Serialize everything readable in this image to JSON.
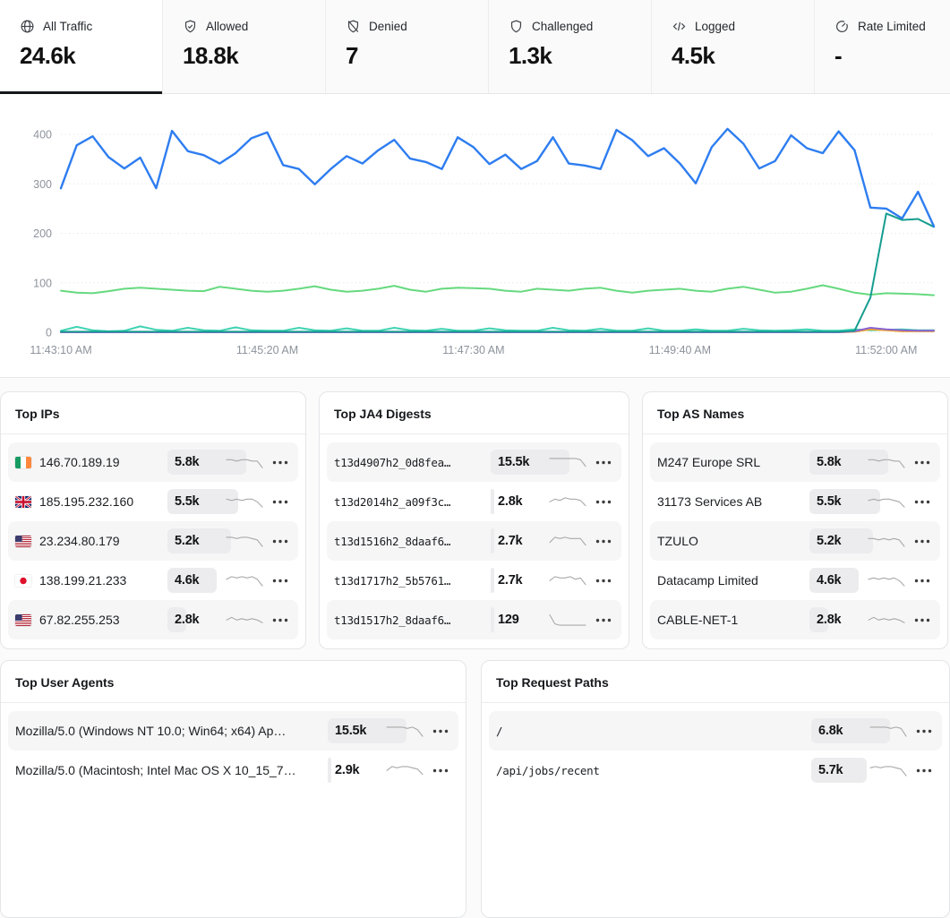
{
  "colors": {
    "active_underline": "#15171a",
    "card_border": "#e4e5e7",
    "bar_bg": "#ececee",
    "row_alt_bg": "#f6f6f7",
    "axis_text": "#8d939c",
    "grid": "#e9e9e9",
    "sparkline": "#a9a9a9"
  },
  "tabs": [
    {
      "label": "All Traffic",
      "value": "24.6k",
      "icon": "globe-icon",
      "active": true
    },
    {
      "label": "Allowed",
      "value": "18.8k",
      "icon": "shield-check-icon",
      "active": false
    },
    {
      "label": "Denied",
      "value": "7",
      "icon": "shield-off-icon",
      "active": false
    },
    {
      "label": "Challenged",
      "value": "1.3k",
      "icon": "shield-icon",
      "active": false
    },
    {
      "label": "Logged",
      "value": "4.5k",
      "icon": "code-icon",
      "active": false
    },
    {
      "label": "Rate Limited",
      "value": "-",
      "icon": "gauge-icon",
      "active": false
    }
  ],
  "chart_data": {
    "type": "line",
    "title": "",
    "xlabel": "",
    "ylabel": "",
    "ylim": [
      0,
      400
    ],
    "y_ticks": [
      0,
      100,
      200,
      300,
      400
    ],
    "grid": true,
    "legend": "none",
    "x_tick_labels": [
      "11:43:10 AM",
      "11:45:20 AM",
      "11:47:30 AM",
      "11:49:40 AM",
      "11:52:00 AM"
    ],
    "x_tick_indices": [
      0,
      13,
      26,
      39,
      52
    ],
    "series": [
      {
        "name": "green",
        "color": "#66d97f",
        "width": 2,
        "values": [
          84,
          80,
          79,
          83,
          88,
          90,
          88,
          86,
          84,
          83,
          92,
          88,
          84,
          82,
          84,
          88,
          93,
          86,
          82,
          84,
          88,
          94,
          86,
          82,
          88,
          90,
          89,
          88,
          84,
          82,
          88,
          86,
          84,
          88,
          90,
          84,
          80,
          84,
          86,
          88,
          84,
          82,
          88,
          92,
          86,
          80,
          82,
          88,
          95,
          88,
          80,
          76,
          79,
          78,
          77,
          75
        ]
      },
      {
        "name": "aqua",
        "color": "#3fd3b3",
        "width": 2,
        "values": [
          3,
          11,
          4,
          2,
          3,
          12,
          5,
          3,
          9,
          4,
          3,
          10,
          4,
          3,
          3,
          9,
          4,
          3,
          8,
          3,
          3,
          9,
          4,
          3,
          7,
          3,
          3,
          8,
          4,
          3,
          3,
          9,
          4,
          3,
          7,
          3,
          3,
          8,
          3,
          3,
          6,
          3,
          3,
          7,
          4,
          3,
          4,
          6,
          3,
          3,
          6,
          4,
          5,
          6,
          4,
          4
        ]
      },
      {
        "name": "orange",
        "color": "#f7a823",
        "width": 2,
        "values": [
          0,
          0,
          0,
          0,
          0,
          0,
          0,
          0,
          0,
          0,
          0,
          0,
          0,
          0,
          0,
          0,
          0,
          0,
          0,
          0,
          0,
          0,
          0,
          0,
          0,
          0,
          0,
          0,
          0,
          0,
          0,
          0,
          0,
          0,
          0,
          0,
          0,
          0,
          0,
          0,
          0,
          0,
          0,
          0,
          0,
          0,
          0,
          0,
          0,
          0,
          1,
          6,
          4,
          2,
          2,
          2
        ]
      },
      {
        "name": "purple",
        "color": "#8a63d2",
        "width": 2,
        "values": [
          0,
          0,
          0,
          0,
          0,
          0,
          0,
          0,
          0,
          0,
          0,
          0,
          0,
          0,
          0,
          0,
          0,
          0,
          0,
          0,
          0,
          0,
          0,
          0,
          0,
          0,
          0,
          0,
          0,
          0,
          0,
          0,
          0,
          0,
          0,
          0,
          0,
          0,
          0,
          0,
          0,
          0,
          0,
          0,
          0,
          0,
          0,
          0,
          0,
          0,
          2,
          9,
          6,
          4,
          3,
          3
        ]
      },
      {
        "name": "teal",
        "color": "#169d90",
        "width": 2,
        "values": [
          1,
          1,
          1,
          1,
          1,
          1,
          1,
          1,
          1,
          1,
          1,
          1,
          1,
          1,
          1,
          1,
          1,
          1,
          1,
          1,
          1,
          1,
          1,
          1,
          1,
          1,
          1,
          1,
          1,
          1,
          1,
          1,
          1,
          1,
          1,
          1,
          1,
          1,
          1,
          1,
          1,
          1,
          1,
          1,
          1,
          1,
          1,
          1,
          1,
          1,
          3,
          70,
          240,
          227,
          229,
          213
        ]
      },
      {
        "name": "blue",
        "color": "#2e7df0",
        "width": 2.4,
        "values": [
          291,
          378,
          396,
          354,
          331,
          353,
          291,
          407,
          366,
          358,
          341,
          362,
          392,
          404,
          338,
          330,
          299,
          330,
          356,
          341,
          368,
          389,
          351,
          344,
          330,
          394,
          374,
          340,
          359,
          330,
          346,
          394,
          341,
          337,
          330,
          409,
          388,
          356,
          372,
          341,
          301,
          374,
          411,
          381,
          331,
          346,
          398,
          372,
          362,
          406,
          368,
          252,
          250,
          230,
          284,
          214
        ]
      }
    ]
  },
  "cards": [
    {
      "key": "top-ips",
      "title": "Top IPs",
      "mono": false,
      "rows": [
        {
          "flag": "ireland",
          "label": "146.70.189.19",
          "value": "5.8k",
          "count": 5800,
          "spark": [
            7,
            7,
            6,
            7,
            7,
            6,
            6,
            1
          ]
        },
        {
          "flag": "uk",
          "label": "185.195.232.160",
          "value": "5.5k",
          "count": 5500,
          "spark": [
            7,
            6,
            7,
            6,
            7,
            7,
            5,
            1
          ]
        },
        {
          "flag": "us",
          "label": "23.234.80.179",
          "value": "5.2k",
          "count": 5200,
          "spark": [
            8,
            8,
            7,
            8,
            8,
            7,
            6,
            1
          ]
        },
        {
          "flag": "japan",
          "label": "138.199.21.233",
          "value": "4.6k",
          "count": 4600,
          "spark": [
            6,
            8,
            7,
            8,
            7,
            8,
            6,
            1
          ]
        },
        {
          "flag": "us",
          "label": "67.82.255.253",
          "value": "2.8k",
          "count": 2800,
          "spark": [
            5,
            7,
            5,
            6,
            5,
            6,
            5,
            3
          ]
        }
      ]
    },
    {
      "key": "top-ja4-digests",
      "title": "Top JA4 Digests",
      "mono": true,
      "rows": [
        {
          "label": "t13d4907h2_0d8fea…",
          "value": "15.5k",
          "count": 15500,
          "spark": [
            8,
            8,
            8,
            8,
            8,
            8,
            7,
            2
          ]
        },
        {
          "label": "t13d2014h2_a09f3c…",
          "value": "2.8k",
          "count": 2800,
          "spark": [
            5,
            7,
            6,
            8,
            7,
            7,
            6,
            2
          ]
        },
        {
          "label": "t13d1516h2_8daaf6…",
          "value": "2.7k",
          "count": 2700,
          "spark": [
            4,
            8,
            7,
            8,
            7,
            7,
            7,
            2
          ]
        },
        {
          "label": "t13d1717h2_5b5761…",
          "value": "2.7k",
          "count": 2700,
          "spark": [
            5,
            8,
            7,
            7,
            8,
            6,
            7,
            2
          ]
        },
        {
          "label": "t13d1517h2_8daaf6…",
          "value": "129",
          "count": 129,
          "spark": [
            9,
            2,
            1,
            1,
            1,
            1,
            1,
            1
          ]
        }
      ]
    },
    {
      "key": "top-as-names",
      "title": "Top AS Names",
      "mono": false,
      "rows": [
        {
          "label": "M247 Europe SRL",
          "value": "5.8k",
          "count": 5800,
          "spark": [
            7,
            7,
            6,
            7,
            7,
            6,
            6,
            1
          ]
        },
        {
          "label": "31173 Services AB",
          "value": "5.5k",
          "count": 5500,
          "spark": [
            6,
            7,
            6,
            7,
            7,
            6,
            5,
            1
          ]
        },
        {
          "label": "TZULO",
          "value": "5.2k",
          "count": 5200,
          "spark": [
            7,
            7,
            6,
            7,
            6,
            7,
            6,
            1
          ]
        },
        {
          "label": "Datacamp Limited",
          "value": "4.6k",
          "count": 4600,
          "spark": [
            6,
            7,
            6,
            7,
            6,
            7,
            5,
            1
          ]
        },
        {
          "label": "CABLE-NET-1",
          "value": "2.8k",
          "count": 2800,
          "spark": [
            5,
            7,
            5,
            6,
            5,
            6,
            5,
            3
          ]
        }
      ]
    },
    {
      "key": "top-user-agents",
      "title": "Top User Agents",
      "mono": false,
      "rows": [
        {
          "label": "Mozilla/5.0 (Windows NT 10.0; Win64; x64) Ap…",
          "value": "15.5k",
          "count": 15500,
          "spark": [
            8,
            8,
            8,
            8,
            7,
            8,
            6,
            1
          ]
        },
        {
          "label": "Mozilla/5.0 (Macintosh; Intel Mac OS X 10_15_7…",
          "value": "2.9k",
          "count": 2900,
          "spark": [
            5,
            8,
            7,
            8,
            8,
            7,
            6,
            2
          ]
        }
      ]
    },
    {
      "key": "top-request-paths",
      "title": "Top Request Paths",
      "mono": true,
      "rows": [
        {
          "label": "/",
          "value": "6.8k",
          "count": 6800,
          "spark": [
            8,
            8,
            8,
            8,
            7,
            8,
            7,
            1
          ]
        },
        {
          "label": "/api/jobs/recent",
          "value": "5.7k",
          "count": 5700,
          "spark": [
            7,
            8,
            7,
            8,
            8,
            7,
            6,
            1
          ]
        }
      ]
    }
  ]
}
